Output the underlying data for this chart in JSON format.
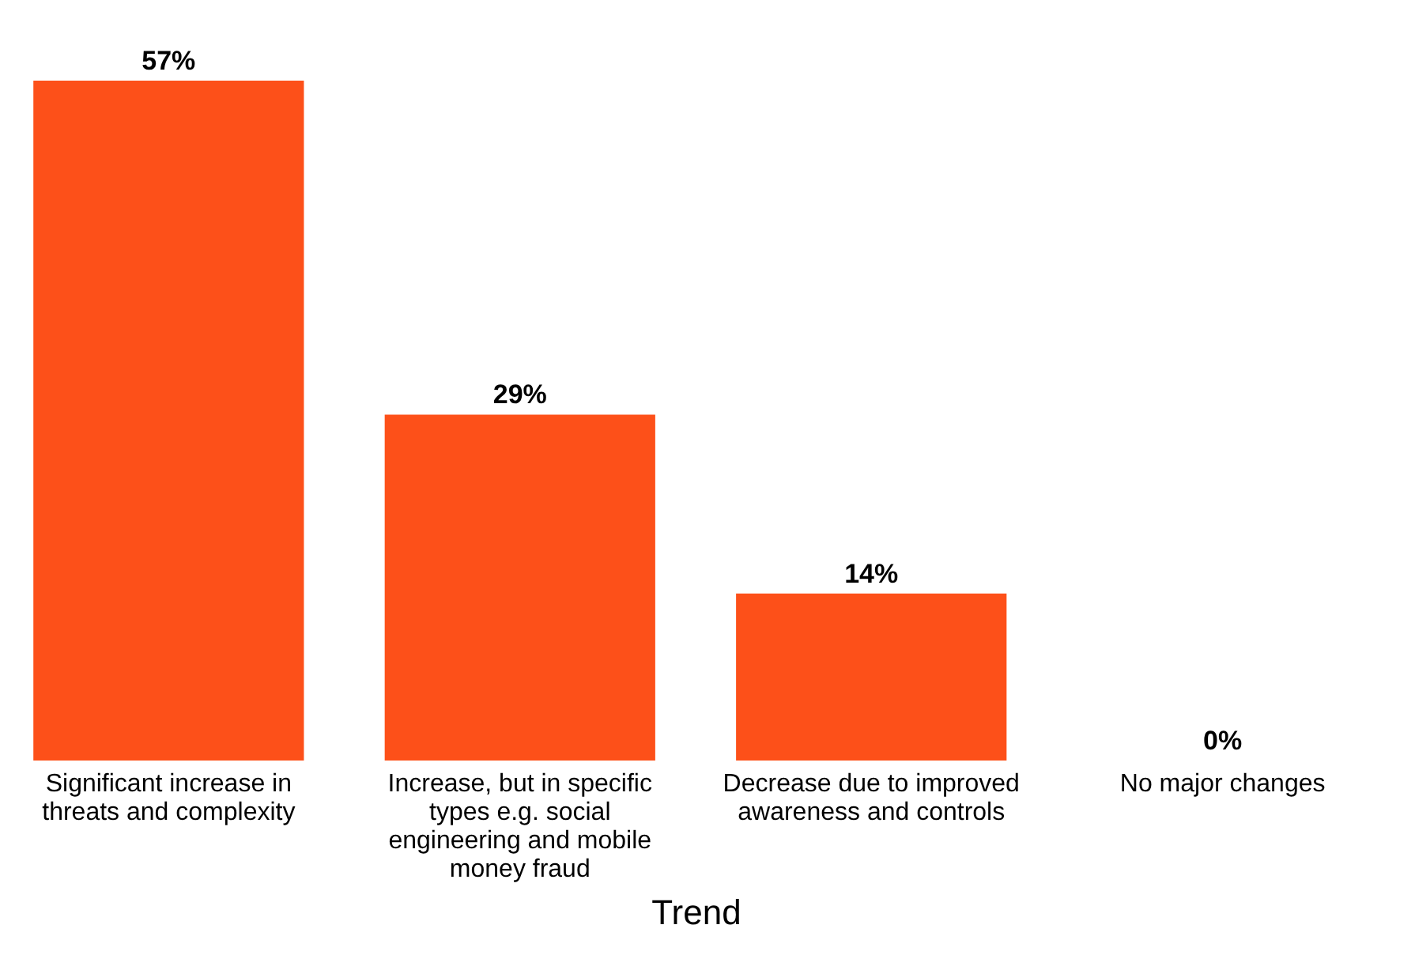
{
  "chart_data": {
    "type": "bar",
    "xlabel": "Trend",
    "categories": [
      "Significant increase in threats and complexity",
      "Increase, but in specific types e.g. social engineering and mobile money fraud",
      "Decrease due to improved awareness and controls",
      "No major changes"
    ],
    "values": [
      57,
      29,
      14,
      0
    ],
    "value_labels": [
      "57%",
      "29%",
      "14%",
      "0%"
    ],
    "color": "#fd5019",
    "grid": false
  }
}
